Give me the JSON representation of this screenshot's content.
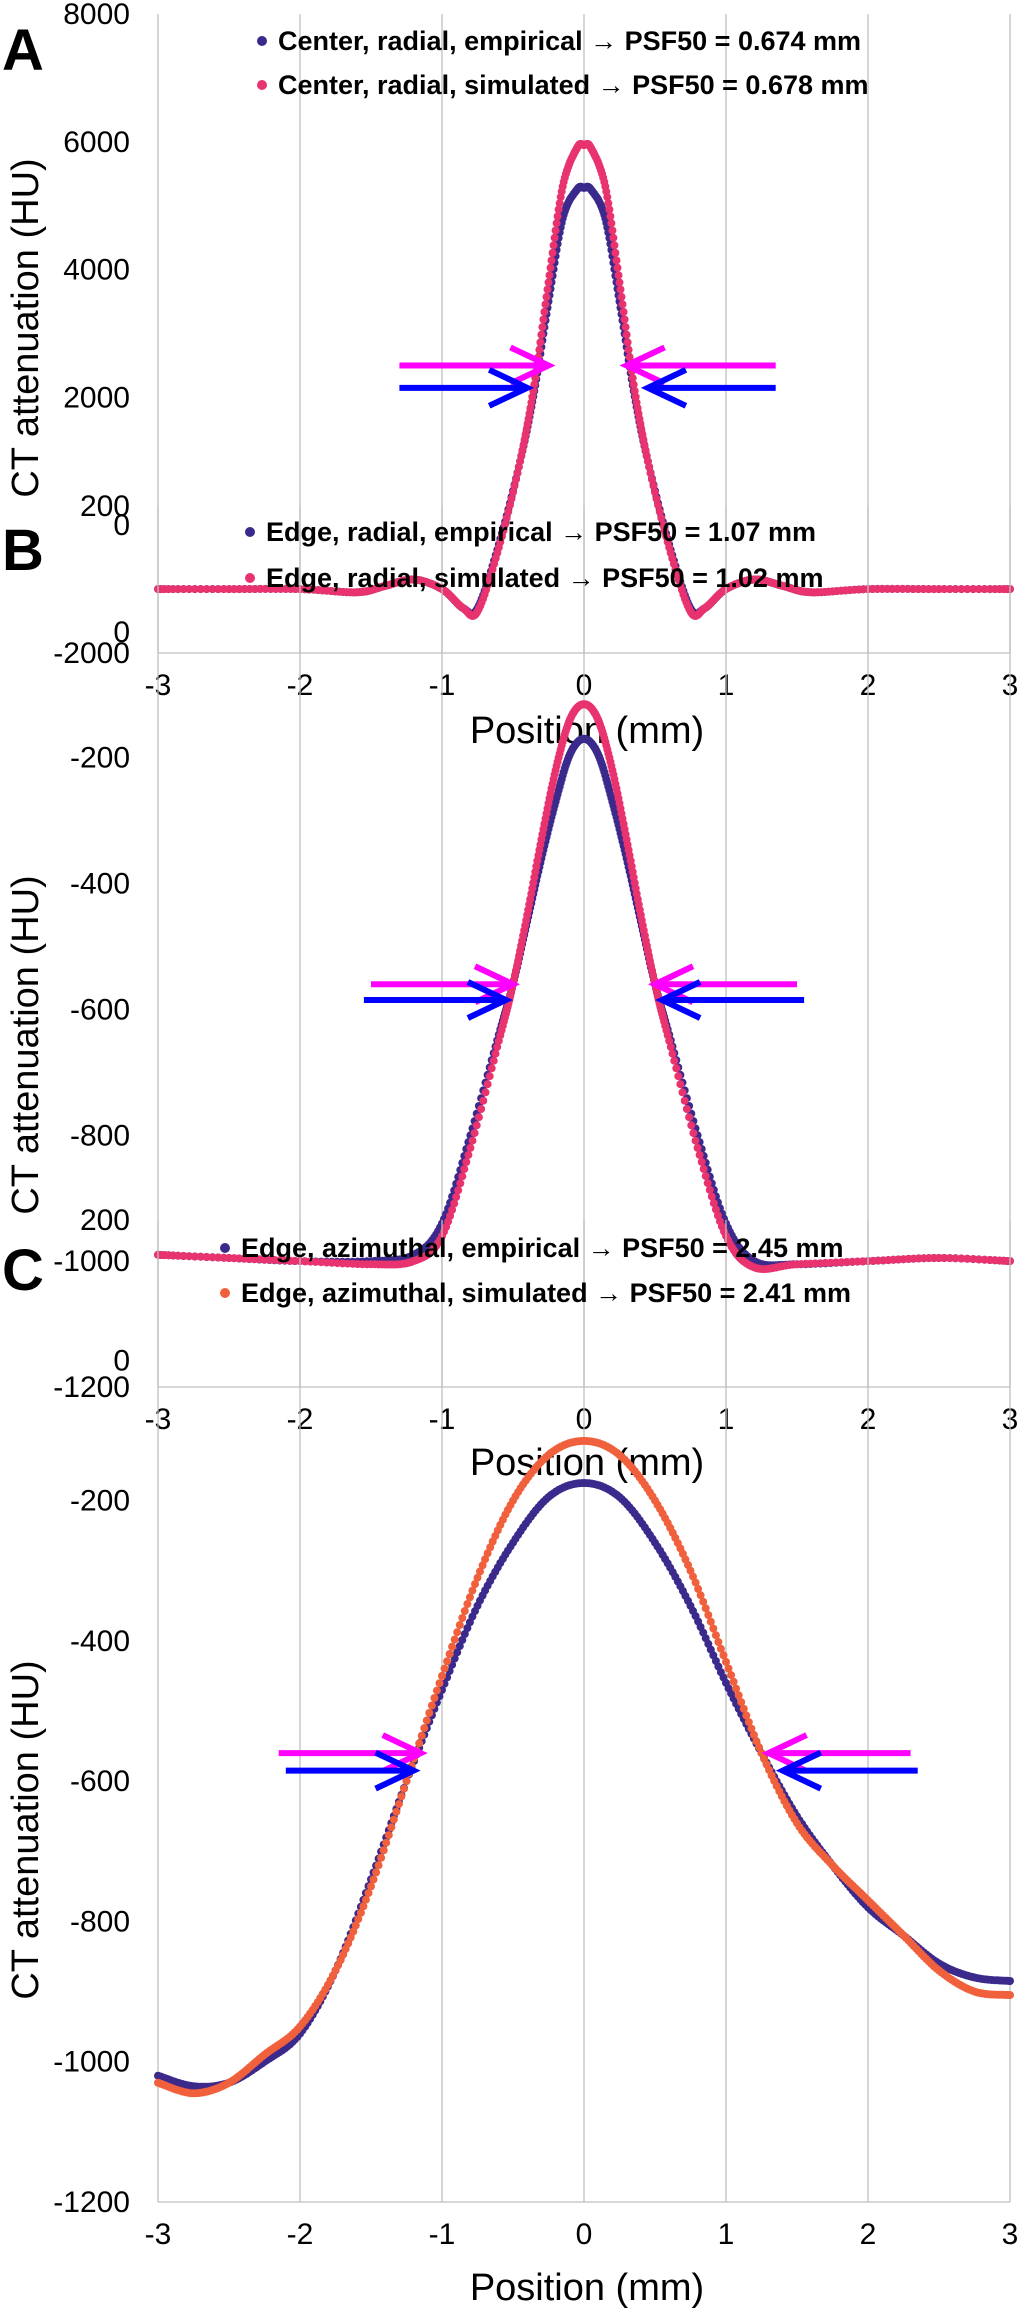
{
  "chart_data": [
    {
      "type": "scatter",
      "panel_label": "A",
      "xlabel": "Position (mm)",
      "ylabel": "CT attenuation (HU)",
      "xlim": [
        -3,
        3
      ],
      "ylim": [
        -2000,
        8000
      ],
      "xticks": [
        -3,
        -2,
        -1,
        0,
        1,
        2,
        3
      ],
      "yticks": [
        -2000,
        0,
        2000,
        4000,
        6000,
        8000
      ],
      "grid": "vertical",
      "legend_position": "top",
      "series": [
        {
          "name": "Center, radial, empirical → PSF50 = 0.674 mm",
          "color": "#3b2a8c",
          "x": [
            -3,
            -2.5,
            -2,
            -1.6,
            -1.4,
            -1.2,
            -1.0,
            -0.85,
            -0.75,
            -0.6,
            -0.45,
            -0.35,
            -0.25,
            -0.15,
            -0.05,
            0,
            0.05,
            0.15,
            0.25,
            0.35,
            0.45,
            0.6,
            0.75,
            0.85,
            1.0,
            1.2,
            1.4,
            1.6,
            2,
            2.5,
            3
          ],
          "y": [
            -1000,
            -1000,
            -1000,
            -1050,
            -950,
            -850,
            -1000,
            -1300,
            -1300,
            -300,
            1000,
            2100,
            3500,
            4800,
            5250,
            5280,
            5250,
            4800,
            3500,
            2100,
            1000,
            -300,
            -1300,
            -1300,
            -1000,
            -850,
            -950,
            -1050,
            -1000,
            -1000,
            -1000
          ]
        },
        {
          "name": "Center, radial, simulated → PSF50 = 0.678 mm",
          "color": "#e8336e",
          "x": [
            -3,
            -2.5,
            -2,
            -1.6,
            -1.4,
            -1.2,
            -1.0,
            -0.85,
            -0.75,
            -0.6,
            -0.45,
            -0.35,
            -0.25,
            -0.15,
            -0.05,
            0,
            0.05,
            0.15,
            0.25,
            0.35,
            0.45,
            0.6,
            0.75,
            0.85,
            1.0,
            1.2,
            1.4,
            1.6,
            2,
            2.5,
            3
          ],
          "y": [
            -1000,
            -1000,
            -1000,
            -1050,
            -950,
            -850,
            -1000,
            -1300,
            -1350,
            -350,
            1000,
            2200,
            3800,
            5300,
            5900,
            5950,
            5900,
            5300,
            3800,
            2200,
            1000,
            -350,
            -1350,
            -1300,
            -1000,
            -850,
            -950,
            -1050,
            -1000,
            -1000,
            -1000
          ]
        }
      ],
      "annotations": [
        {
          "type": "arrow",
          "direction": "right",
          "color": "#ff00ff",
          "x_from": -1.3,
          "x_to": -0.25,
          "y": 2500
        },
        {
          "type": "arrow",
          "direction": "right",
          "color": "#0000ff",
          "x_from": -1.3,
          "x_to": -0.4,
          "y": 2150
        },
        {
          "type": "arrow",
          "direction": "left",
          "color": "#ff00ff",
          "x_from": 1.35,
          "x_to": 0.3,
          "y": 2500
        },
        {
          "type": "arrow",
          "direction": "left",
          "color": "#0000ff",
          "x_from": 1.35,
          "x_to": 0.45,
          "y": 2150
        }
      ]
    },
    {
      "type": "scatter",
      "panel_label": "B",
      "xlabel": "Position (mm)",
      "ylabel": "CT attenuation (HU)",
      "xlim": [
        -3,
        3
      ],
      "ylim": [
        -1200,
        200
      ],
      "xticks": [
        -3,
        -2,
        -1,
        0,
        1,
        2,
        3
      ],
      "yticks": [
        -1200,
        -1000,
        -800,
        -600,
        -400,
        -200,
        0,
        200
      ],
      "grid": "vertical",
      "legend_position": "top",
      "series": [
        {
          "name": "Edge, radial, empirical → PSF50 = 1.07 mm",
          "color": "#3b2a8c",
          "x": [
            -3,
            -2.5,
            -2,
            -1.5,
            -1.2,
            -1.0,
            -0.8,
            -0.6,
            -0.5,
            -0.4,
            -0.3,
            -0.2,
            -0.1,
            0,
            0.1,
            0.2,
            0.3,
            0.4,
            0.5,
            0.6,
            0.8,
            1.0,
            1.2,
            1.5,
            2,
            2.5,
            3
          ],
          "y": [
            -990,
            -995,
            -1000,
            -1000,
            -990,
            -940,
            -800,
            -640,
            -560,
            -460,
            -360,
            -270,
            -195,
            -170,
            -195,
            -270,
            -360,
            -460,
            -560,
            -640,
            -800,
            -940,
            -1000,
            -1005,
            -1000,
            -995,
            -1000
          ]
        },
        {
          "name": "Edge, radial, simulated → PSF50 = 1.02 mm",
          "color": "#e8336e",
          "x": [
            -3,
            -2.5,
            -2,
            -1.5,
            -1.2,
            -1.0,
            -0.8,
            -0.6,
            -0.5,
            -0.4,
            -0.3,
            -0.2,
            -0.1,
            0,
            0.1,
            0.2,
            0.3,
            0.4,
            0.5,
            0.6,
            0.8,
            1.0,
            1.2,
            1.5,
            2,
            2.5,
            3
          ],
          "y": [
            -990,
            -995,
            -1000,
            -1005,
            -1000,
            -960,
            -820,
            -650,
            -560,
            -450,
            -330,
            -220,
            -140,
            -115,
            -140,
            -220,
            -330,
            -450,
            -560,
            -650,
            -820,
            -960,
            -1010,
            -1005,
            -1000,
            -995,
            -1000
          ]
        }
      ],
      "annotations": [
        {
          "type": "arrow",
          "direction": "right",
          "color": "#ff00ff",
          "x_from": -1.5,
          "x_to": -0.5,
          "y": -560
        },
        {
          "type": "arrow",
          "direction": "right",
          "color": "#0000ff",
          "x_from": -1.55,
          "x_to": -0.55,
          "y": -585
        },
        {
          "type": "arrow",
          "direction": "left",
          "color": "#ff00ff",
          "x_from": 1.5,
          "x_to": 0.5,
          "y": -560
        },
        {
          "type": "arrow",
          "direction": "left",
          "color": "#0000ff",
          "x_from": 1.55,
          "x_to": 0.55,
          "y": -585
        }
      ]
    },
    {
      "type": "scatter",
      "panel_label": "C",
      "xlabel": "Position (mm)",
      "ylabel": "CT attenuation (HU)",
      "xlim": [
        -3,
        3
      ],
      "ylim": [
        -1200,
        200
      ],
      "xticks": [
        -3,
        -2,
        -1,
        0,
        1,
        2,
        3
      ],
      "yticks": [
        -1200,
        -1000,
        -800,
        -600,
        -400,
        -200,
        0,
        200
      ],
      "grid": "vertical",
      "legend_position": "top",
      "series": [
        {
          "name": "Edge, azimuthal, empirical → PSF50 = 2.45 mm",
          "color": "#3b2a8c",
          "x": [
            -3,
            -2.75,
            -2.5,
            -2.25,
            -2,
            -1.75,
            -1.5,
            -1.25,
            -1,
            -0.75,
            -0.5,
            -0.25,
            0,
            0.25,
            0.5,
            0.75,
            1,
            1.25,
            1.5,
            1.75,
            2,
            2.25,
            2.5,
            2.75,
            3
          ],
          "y": [
            -1020,
            -1035,
            -1030,
            -1000,
            -960,
            -870,
            -740,
            -600,
            -470,
            -350,
            -260,
            -195,
            -175,
            -195,
            -260,
            -350,
            -460,
            -560,
            -650,
            -720,
            -780,
            -820,
            -860,
            -880,
            -885
          ]
        },
        {
          "name": "Edge, azimuthal, simulated → PSF50 = 2.41 mm",
          "color": "#f0603c",
          "x": [
            -3,
            -2.75,
            -2.5,
            -2.25,
            -2,
            -1.75,
            -1.5,
            -1.25,
            -1,
            -0.75,
            -0.5,
            -0.25,
            0,
            0.25,
            0.5,
            0.75,
            1,
            1.25,
            1.5,
            1.75,
            2,
            2.25,
            2.5,
            2.75,
            3
          ],
          "y": [
            -1030,
            -1045,
            -1030,
            -990,
            -950,
            -870,
            -750,
            -600,
            -450,
            -310,
            -200,
            -135,
            -115,
            -135,
            -200,
            -300,
            -430,
            -560,
            -660,
            -720,
            -770,
            -820,
            -870,
            -900,
            -905
          ]
        }
      ],
      "annotations": [
        {
          "type": "arrow",
          "direction": "right",
          "color": "#ff00ff",
          "x_from": -2.15,
          "x_to": -1.15,
          "y": -560
        },
        {
          "type": "arrow",
          "direction": "right",
          "color": "#0000ff",
          "x_from": -2.1,
          "x_to": -1.2,
          "y": -585
        },
        {
          "type": "arrow",
          "direction": "left",
          "color": "#ff00ff",
          "x_from": 2.3,
          "x_to": 1.3,
          "y": -560
        },
        {
          "type": "arrow",
          "direction": "left",
          "color": "#0000ff",
          "x_from": 2.35,
          "x_to": 1.4,
          "y": -585
        }
      ]
    }
  ]
}
